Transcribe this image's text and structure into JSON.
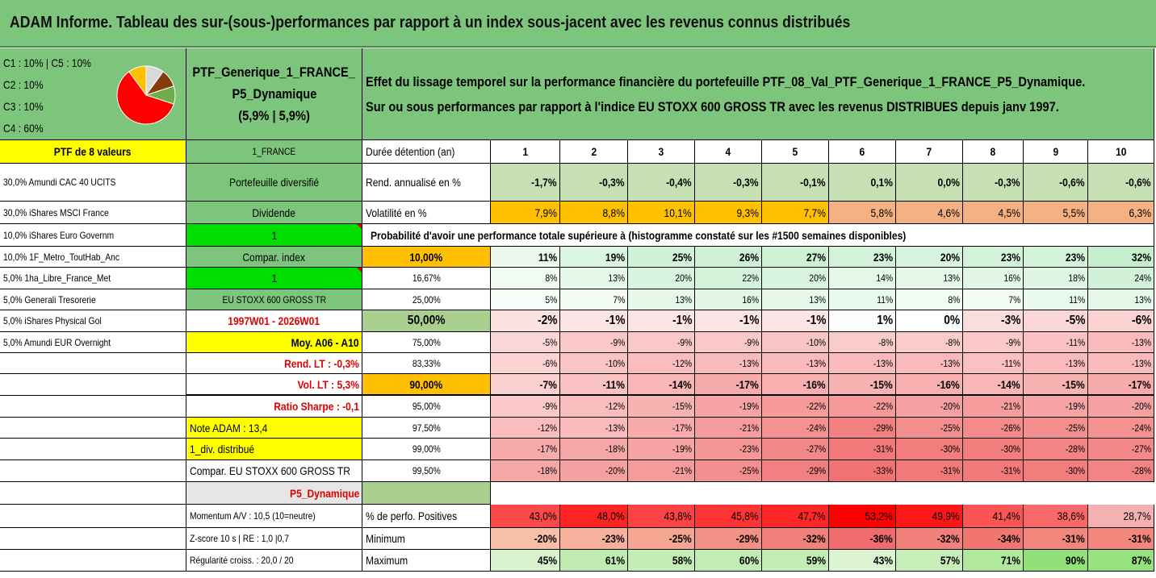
{
  "title": "ADAM Informe. Tableau des sur-(sous-)performances par rapport à un index sous-jacent avec les revenus connus distribués",
  "pie": {
    "legend": [
      "C1 : 10% | C5 : 10%",
      "C2 : 10%",
      "C3 : 10%",
      "C4 : 60%"
    ],
    "slices": [
      {
        "value": 10,
        "color": "#d9d9d9"
      },
      {
        "value": 10,
        "color": "#843c0c"
      },
      {
        "value": 10,
        "color": "#70ad47"
      },
      {
        "value": 60,
        "color": "#ff0000"
      },
      {
        "value": 10,
        "color": "#ffc000"
      }
    ]
  },
  "portfolio": {
    "name_line1": "PTF_Generique_1_FRANCE_",
    "name_line2": "P5_Dynamique",
    "name_line3": "(5,9% | 5,9%)"
  },
  "description": {
    "line1": "Effet du lissage temporel sur la performance financière du portefeuille PTF_08_Val_PTF_Generique_1_FRANCE_P5_Dynamique.",
    "line2": "Sur ou sous performances par rapport à l'indice EU STOXX 600 GROSS TR avec les revenus DISTRIBUES depuis janv 1997."
  },
  "holdings_header": "PTF de 8 valeurs",
  "holdings": [
    "30,0% Amundi CAC 40 UCITS",
    "30,0% iShares MSCI France",
    "10,0% iShares Euro Governm",
    "10,0% 1F_Metro_ToutHab_Anc",
    "5,0% 1ha_Libre_France_Met",
    "5,0% Generali Tresorerie",
    "5,0% iShares Physical Gol",
    "5,0% Amundi EUR Overnight"
  ],
  "info": {
    "country": "1_FRANCE",
    "diversified": "Portefeuille diversifié",
    "dividend": "Dividende",
    "dividend_value": "1",
    "compar_index": "Compar. index",
    "compar_value": "1",
    "index_name": "EU STOXX 600 GROSS TR",
    "period": "1997W01 - 2026W01",
    "moy": "Moy. A06 - A10",
    "rend_lt": "Rend. LT : -0,3%",
    "vol_lt": "Vol. LT : 5,3%",
    "sharpe": "Ratio Sharpe : -0,1",
    "note": "Note ADAM : 13,4",
    "div": "1_div. distribué",
    "compar_eu": "Compar. EU STOXX 600 GROSS TR",
    "profile": "P5_Dynamique",
    "momentum": "Momentum A/V : 10,5 (10=neutre)",
    "zscore": "Z-score 10 s | RE : 1,0 |0,7",
    "regularite": "Régularité croiss. : 20,0 / 20"
  },
  "table": {
    "duration_label": "Durée détention (an)",
    "years": [
      "1",
      "2",
      "3",
      "4",
      "5",
      "6",
      "7",
      "8",
      "9",
      "10"
    ],
    "rend_label": "Rend. annualisé en %",
    "rend": [
      "-1,7%",
      "-0,3%",
      "-0,4%",
      "-0,3%",
      "-0,1%",
      "0,1%",
      "0,0%",
      "-0,3%",
      "-0,6%",
      "-0,6%"
    ],
    "vol_label": "Volatilité en %",
    "vol": [
      "7,9%",
      "8,8%",
      "10,1%",
      "9,3%",
      "7,7%",
      "5,8%",
      "4,6%",
      "4,5%",
      "5,5%",
      "6,3%"
    ],
    "prob_title": "Probabilité d'avoir une performance totale supérieure à (histogramme constaté sur les #1500 semaines disponibles)",
    "prob_rows": [
      {
        "label": "10,00%",
        "values": [
          "11%",
          "19%",
          "25%",
          "26%",
          "27%",
          "23%",
          "20%",
          "23%",
          "23%",
          "32%"
        ]
      },
      {
        "label": "16,67%",
        "values": [
          "8%",
          "13%",
          "20%",
          "22%",
          "20%",
          "14%",
          "13%",
          "16%",
          "18%",
          "24%"
        ]
      },
      {
        "label": "25,00%",
        "values": [
          "5%",
          "7%",
          "13%",
          "16%",
          "13%",
          "11%",
          "8%",
          "7%",
          "11%",
          "13%"
        ]
      },
      {
        "label": "50,00%",
        "values": [
          "-2%",
          "-1%",
          "-1%",
          "-1%",
          "-1%",
          "1%",
          "0%",
          "-3%",
          "-5%",
          "-6%"
        ]
      },
      {
        "label": "75,00%",
        "values": [
          "-5%",
          "-9%",
          "-9%",
          "-9%",
          "-10%",
          "-8%",
          "-8%",
          "-9%",
          "-11%",
          "-13%"
        ]
      },
      {
        "label": "83,33%",
        "values": [
          "-6%",
          "-10%",
          "-12%",
          "-13%",
          "-13%",
          "-13%",
          "-13%",
          "-11%",
          "-13%",
          "-13%"
        ]
      },
      {
        "label": "90,00%",
        "values": [
          "-7%",
          "-11%",
          "-14%",
          "-17%",
          "-16%",
          "-15%",
          "-16%",
          "-14%",
          "-15%",
          "-17%"
        ]
      },
      {
        "label": "95,00%",
        "values": [
          "-9%",
          "-12%",
          "-15%",
          "-19%",
          "-22%",
          "-22%",
          "-20%",
          "-21%",
          "-19%",
          "-20%"
        ]
      },
      {
        "label": "97,50%",
        "values": [
          "-12%",
          "-13%",
          "-17%",
          "-21%",
          "-24%",
          "-29%",
          "-25%",
          "-26%",
          "-25%",
          "-24%"
        ]
      },
      {
        "label": "99,00%",
        "values": [
          "-17%",
          "-18%",
          "-19%",
          "-23%",
          "-27%",
          "-31%",
          "-30%",
          "-30%",
          "-28%",
          "-27%"
        ]
      },
      {
        "label": "99,50%",
        "values": [
          "-18%",
          "-20%",
          "-21%",
          "-25%",
          "-29%",
          "-33%",
          "-31%",
          "-31%",
          "-30%",
          "-28%"
        ]
      }
    ],
    "pos_label": "% de perfo. Positives",
    "pos": [
      "43,0%",
      "48,0%",
      "43,8%",
      "45,8%",
      "47,7%",
      "53,2%",
      "49,9%",
      "41,4%",
      "38,6%",
      "28,7%"
    ],
    "min_label": "Minimum",
    "min": [
      "-20%",
      "-23%",
      "-25%",
      "-29%",
      "-32%",
      "-36%",
      "-32%",
      "-34%",
      "-31%",
      "-31%"
    ],
    "max_label": "Maximum",
    "max": [
      "45%",
      "61%",
      "58%",
      "60%",
      "59%",
      "43%",
      "57%",
      "71%",
      "90%",
      "87%"
    ]
  }
}
